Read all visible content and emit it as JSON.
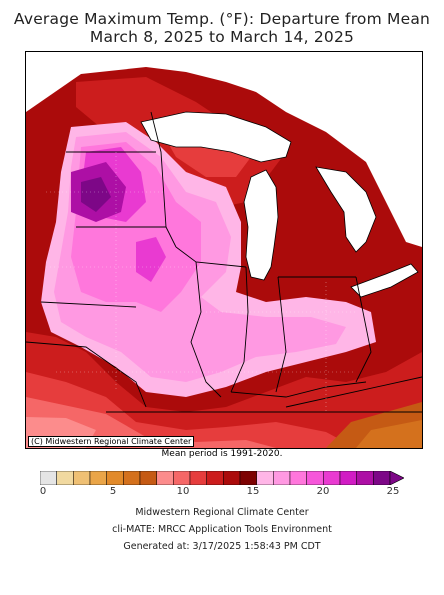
{
  "title": {
    "line1": "Average Maximum Temp. (°F): Departure from Mean",
    "line2": "March 8, 2025 to March 14, 2025"
  },
  "map": {
    "credit": "(C) Midwestern Regional Climate Center",
    "mean_period": "Mean period is 1991-2020."
  },
  "legend": {
    "ticks": [
      "0",
      "5",
      "10",
      "15",
      "20",
      "25"
    ],
    "colors": [
      "#e5e5e5",
      "#f1d9a0",
      "#efc074",
      "#eaa548",
      "#e28a2a",
      "#d4711d",
      "#c55a14",
      "#fc8c8c",
      "#f56767",
      "#e63d3d",
      "#cc1d1d",
      "#ab0b0b",
      "#7d0202",
      "#ffb6e7",
      "#ff99e2",
      "#ff77dc",
      "#f656da",
      "#e93ad1",
      "#d11cc4",
      "#ad0fa5",
      "#7d0787"
    ]
  },
  "footer": {
    "line1": "Midwestern Regional Climate Center",
    "line2": "cli-MATE: MRCC Application Tools Environment",
    "line3": "Generated at: 3/17/2025 1:58:43 PM CDT"
  }
}
